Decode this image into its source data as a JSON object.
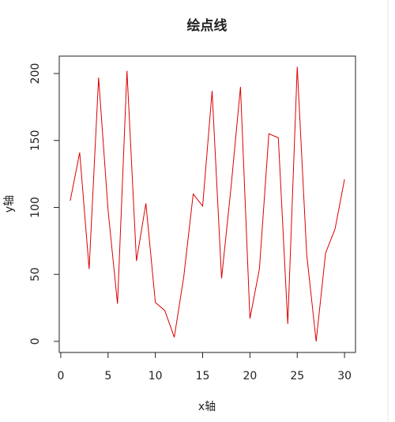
{
  "chart_data": {
    "type": "line",
    "title": "绘点线",
    "x_label": "x轴",
    "y_label": "y轴",
    "x": [
      1,
      2,
      3,
      4,
      5,
      6,
      7,
      8,
      9,
      10,
      11,
      12,
      13,
      14,
      15,
      16,
      17,
      18,
      19,
      20,
      21,
      22,
      23,
      24,
      25,
      26,
      27,
      28,
      29,
      30
    ],
    "values": [
      105,
      141,
      54,
      197,
      98,
      28,
      202,
      60,
      103,
      29,
      23,
      3,
      48,
      110,
      101,
      187,
      47,
      115,
      190,
      17,
      54,
      155,
      152,
      13,
      205,
      65,
      0,
      66,
      84,
      121
    ],
    "color": "#dd0000",
    "xlim": [
      -0.16,
      31.16
    ],
    "xticks": [
      0,
      5,
      10,
      15,
      20,
      25,
      30
    ],
    "ylim": [
      -8.3,
      213
    ],
    "yticks": [
      0,
      50,
      100,
      150,
      200
    ]
  }
}
